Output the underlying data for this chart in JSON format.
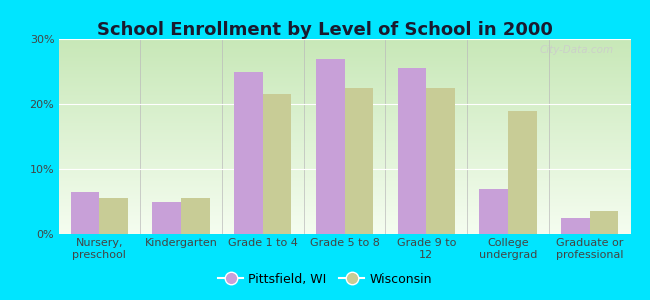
{
  "title": "School Enrollment by Level of School in 2000",
  "categories": [
    "Nursery,\npreschool",
    "Kindergarten",
    "Grade 1 to 4",
    "Grade 5 to 8",
    "Grade 9 to\n12",
    "College\nundergrad",
    "Graduate or\nprofessional"
  ],
  "pittsfield": [
    6.5,
    5.0,
    25.0,
    27.0,
    25.5,
    7.0,
    2.5
  ],
  "wisconsin": [
    5.5,
    5.5,
    21.5,
    22.5,
    22.5,
    19.0,
    3.5
  ],
  "bar_color_pittsfield": "#c8a0d8",
  "bar_color_wisconsin": "#c8cc96",
  "background_outer": "#00e5ff",
  "background_inner": "#e8f5e2",
  "ylim": [
    0,
    30
  ],
  "yticks": [
    0,
    10,
    20,
    30
  ],
  "bar_width": 0.35,
  "legend_label_pittsfield": "Pittsfield, WI",
  "legend_label_wisconsin": "Wisconsin",
  "title_fontsize": 13,
  "tick_fontsize": 8,
  "legend_fontsize": 9,
  "watermark": "City-Data.com",
  "grid_color": "#ffffff",
  "title_color": "#1a1a2e",
  "tick_color": "#444444"
}
